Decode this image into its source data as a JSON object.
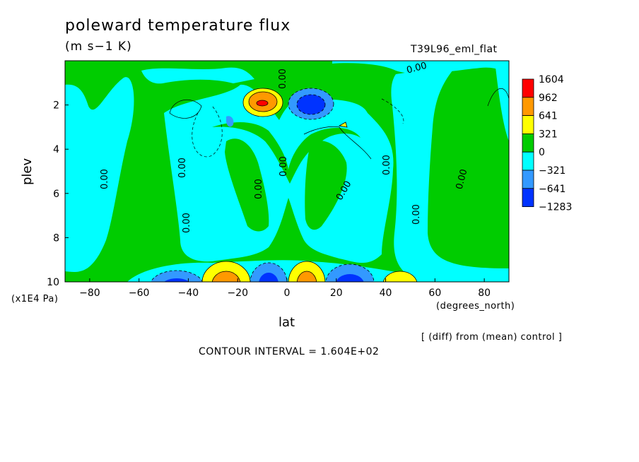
{
  "chart_data": {
    "type": "heatmap",
    "title": "poleward temperature flux",
    "units": "(m s−1 K)",
    "run_label": "T39L96_eml_flat",
    "xlabel": "lat",
    "xunits": "(degrees_north)",
    "ylabel": "plev",
    "yunits": "(x1E4 Pa)",
    "xlim": [
      -90,
      90
    ],
    "ylim": [
      10,
      0
    ],
    "xticks": [
      -80,
      -60,
      -40,
      -20,
      0,
      20,
      40,
      60,
      80
    ],
    "yticks": [
      2,
      4,
      6,
      8,
      10
    ],
    "note": "[ (diff) from (mean) control ]",
    "contour_interval_text": "CONTOUR INTERVAL = 1.604E+02",
    "contour_label": "0.00",
    "colorbar": {
      "labels": [
        "1604",
        "962",
        "641",
        "321",
        "0",
        "−321",
        "−641",
        "−1283"
      ],
      "colors": [
        "#ff0000",
        "#ff9900",
        "#ffff00",
        "#00cc00",
        "#00ffff",
        "#3399ff",
        "#0033ff"
      ]
    },
    "regions": [
      {
        "lat": -11,
        "plev": 2.0,
        "value": 1604
      },
      {
        "lat": 8,
        "plev": 2.0,
        "value": -641
      },
      {
        "lat": -24,
        "plev": 9.7,
        "value": 962
      },
      {
        "lat": 7,
        "plev": 9.7,
        "value": 962
      },
      {
        "lat": 44,
        "plev": 9.8,
        "value": 641
      },
      {
        "lat": -14,
        "plev": 9.7,
        "value": -641
      },
      {
        "lat": 24,
        "plev": 9.7,
        "value": -641
      },
      {
        "lat": -47,
        "plev": 9.8,
        "value": -641
      }
    ]
  }
}
